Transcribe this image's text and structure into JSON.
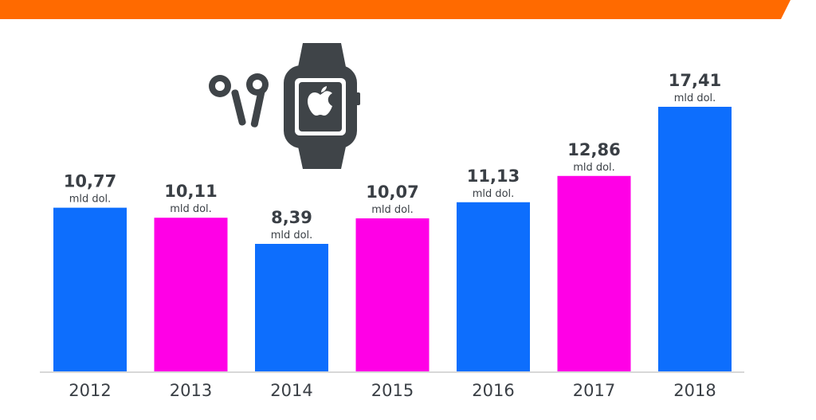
{
  "chart_data": {
    "type": "bar",
    "categories": [
      "2012",
      "2013",
      "2014",
      "2015",
      "2016",
      "2017",
      "2018"
    ],
    "values": [
      10.77,
      10.11,
      8.39,
      10.07,
      11.13,
      12.86,
      17.41
    ],
    "value_labels": [
      "10,77",
      "10,11",
      "8,39",
      "10,07",
      "11,13",
      "12,86",
      "17,41"
    ],
    "unit_label": "mld dol.",
    "title": "",
    "xlabel": "",
    "ylabel": "",
    "ylim": [
      0,
      17.41
    ],
    "grid": false,
    "bar_colors": [
      "#0d6efd",
      "#ff00e6",
      "#0d6efd",
      "#ff00e6",
      "#0d6efd",
      "#ff00e6",
      "#0d6efd"
    ]
  },
  "colors": {
    "header_band": "#ff6a00",
    "text": "#3a3f45",
    "baseline": "#d8d8d8",
    "icon": "#3f4448"
  },
  "icons": [
    "earbuds-icon",
    "smartwatch-icon",
    "apple-logo-icon"
  ]
}
